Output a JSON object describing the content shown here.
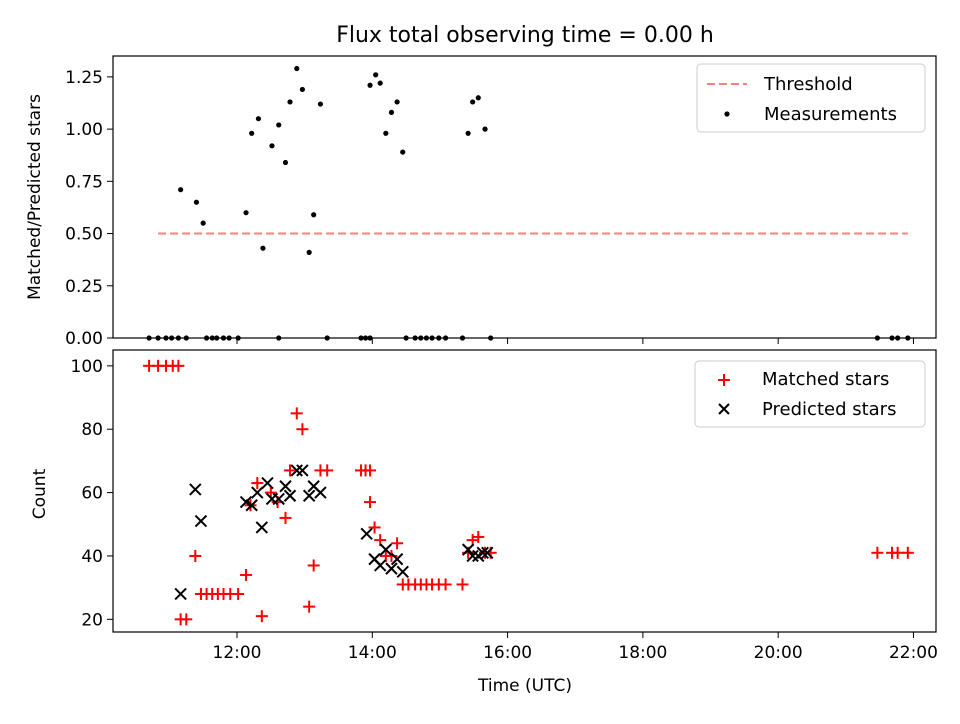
{
  "chart_data": [
    {
      "type": "scatter",
      "title": "Flux total observing time = 0.00 h",
      "xlabel": "",
      "ylabel": "Matched/Predicted stars",
      "ylim": [
        0,
        1.35
      ],
      "xlim": [
        "10:10",
        "22:20"
      ],
      "yticks": [
        "0.00",
        "0.25",
        "0.50",
        "0.75",
        "1.00",
        "1.25"
      ],
      "legend_position": "top-right",
      "threshold": {
        "name": "Threshold",
        "value": 0.5,
        "x_start": "10:50",
        "x_end": "21:55",
        "color": "#ff7f7f",
        "style": "dashed"
      },
      "series": [
        {
          "name": "Measurements",
          "color": "#000000",
          "points": [
            [
              "11:10",
              0.71
            ],
            [
              "11:24",
              0.65
            ],
            [
              "11:30",
              0.55
            ],
            [
              "12:08",
              0.6
            ],
            [
              "12:13",
              0.98
            ],
            [
              "12:19",
              1.05
            ],
            [
              "12:23",
              0.43
            ],
            [
              "12:31",
              0.92
            ],
            [
              "12:37",
              1.02
            ],
            [
              "12:43",
              0.84
            ],
            [
              "12:47",
              1.13
            ],
            [
              "12:53",
              1.29
            ],
            [
              "12:58",
              1.19
            ],
            [
              "13:04",
              0.41
            ],
            [
              "13:08",
              0.59
            ],
            [
              "13:14",
              1.12
            ],
            [
              "13:58",
              1.21
            ],
            [
              "14:03",
              1.26
            ],
            [
              "14:07",
              1.22
            ],
            [
              "14:12",
              0.98
            ],
            [
              "14:17",
              1.08
            ],
            [
              "14:22",
              1.13
            ],
            [
              "14:27",
              0.89
            ],
            [
              "15:25",
              0.98
            ],
            [
              "15:29",
              1.13
            ],
            [
              "15:34",
              1.15
            ],
            [
              "15:40",
              1.0
            ],
            [
              "10:42",
              0
            ],
            [
              "10:50",
              0
            ],
            [
              "10:57",
              0
            ],
            [
              "11:02",
              0
            ],
            [
              "11:08",
              0
            ],
            [
              "11:15",
              0
            ],
            [
              "11:33",
              0
            ],
            [
              "11:38",
              0
            ],
            [
              "11:42",
              0
            ],
            [
              "11:48",
              0
            ],
            [
              "11:53",
              0
            ],
            [
              "12:01",
              0
            ],
            [
              "12:37",
              0
            ],
            [
              "13:20",
              0
            ],
            [
              "13:50",
              0
            ],
            [
              "13:54",
              0
            ],
            [
              "13:58",
              0
            ],
            [
              "14:30",
              0
            ],
            [
              "14:38",
              0
            ],
            [
              "14:43",
              0
            ],
            [
              "14:48",
              0
            ],
            [
              "14:53",
              0
            ],
            [
              "14:59",
              0
            ],
            [
              "15:05",
              0
            ],
            [
              "15:20",
              0
            ],
            [
              "15:45",
              0
            ],
            [
              "21:28",
              0
            ],
            [
              "21:41",
              0
            ],
            [
              "21:46",
              0
            ],
            [
              "21:55",
              0
            ]
          ]
        }
      ]
    },
    {
      "type": "scatter",
      "title": "",
      "xlabel": "Time (UTC)",
      "ylabel": "Count",
      "ylim": [
        16,
        105
      ],
      "xlim": [
        "10:10",
        "22:20"
      ],
      "yticks": [
        "20",
        "40",
        "60",
        "80",
        "100"
      ],
      "xticks": [
        "12:00",
        "14:00",
        "16:00",
        "18:00",
        "20:00",
        "22:00"
      ],
      "legend_position": "top-right",
      "series": [
        {
          "name": "Matched stars",
          "marker": "plus",
          "color": "#ff0000",
          "points": [
            [
              "10:42",
              100
            ],
            [
              "10:50",
              100
            ],
            [
              "10:57",
              100
            ],
            [
              "11:03",
              100
            ],
            [
              "11:08",
              100
            ],
            [
              "11:10",
              20
            ],
            [
              "11:15",
              20
            ],
            [
              "11:23",
              40
            ],
            [
              "11:28",
              28
            ],
            [
              "11:33",
              28
            ],
            [
              "11:38",
              28
            ],
            [
              "11:43",
              28
            ],
            [
              "11:48",
              28
            ],
            [
              "11:54",
              28
            ],
            [
              "12:01",
              28
            ],
            [
              "12:08",
              34
            ],
            [
              "12:12",
              56
            ],
            [
              "12:18",
              63
            ],
            [
              "12:22",
              21
            ],
            [
              "12:30",
              60
            ],
            [
              "12:36",
              57
            ],
            [
              "12:43",
              52
            ],
            [
              "12:47",
              67
            ],
            [
              "12:53",
              85
            ],
            [
              "12:58",
              80
            ],
            [
              "13:04",
              24
            ],
            [
              "13:08",
              37
            ],
            [
              "13:14",
              67
            ],
            [
              "13:20",
              67
            ],
            [
              "13:50",
              67
            ],
            [
              "13:54",
              67
            ],
            [
              "13:58",
              67
            ],
            [
              "13:58",
              57
            ],
            [
              "14:02",
              49
            ],
            [
              "14:07",
              45
            ],
            [
              "14:12",
              40
            ],
            [
              "14:17",
              40
            ],
            [
              "14:22",
              44
            ],
            [
              "14:27",
              31
            ],
            [
              "14:32",
              31
            ],
            [
              "14:38",
              31
            ],
            [
              "14:43",
              31
            ],
            [
              "14:48",
              31
            ],
            [
              "14:53",
              31
            ],
            [
              "14:59",
              31
            ],
            [
              "15:05",
              31
            ],
            [
              "15:20",
              31
            ],
            [
              "15:25",
              41
            ],
            [
              "15:29",
              45
            ],
            [
              "15:34",
              46
            ],
            [
              "15:40",
              41
            ],
            [
              "15:45",
              41
            ],
            [
              "21:28",
              41
            ],
            [
              "21:41",
              41
            ],
            [
              "21:46",
              41
            ],
            [
              "21:55",
              41
            ]
          ]
        },
        {
          "name": "Predicted stars",
          "marker": "x",
          "color": "#000000",
          "points": [
            [
              "11:10",
              28
            ],
            [
              "11:23",
              61
            ],
            [
              "11:28",
              51
            ],
            [
              "12:08",
              57
            ],
            [
              "12:13",
              56
            ],
            [
              "12:18",
              60
            ],
            [
              "12:22",
              49
            ],
            [
              "12:27",
              63
            ],
            [
              "12:31",
              58
            ],
            [
              "12:37",
              58
            ],
            [
              "12:43",
              62
            ],
            [
              "12:47",
              59
            ],
            [
              "12:53",
              67
            ],
            [
              "12:58",
              67
            ],
            [
              "13:04",
              59
            ],
            [
              "13:08",
              62
            ],
            [
              "13:14",
              60
            ],
            [
              "13:55",
              47
            ],
            [
              "14:02",
              39
            ],
            [
              "14:07",
              37
            ],
            [
              "14:12",
              42
            ],
            [
              "14:17",
              36
            ],
            [
              "14:22",
              39
            ],
            [
              "14:27",
              35
            ],
            [
              "15:25",
              42
            ],
            [
              "15:29",
              40
            ],
            [
              "15:34",
              40
            ],
            [
              "15:38",
              41
            ],
            [
              "15:42",
              41
            ]
          ]
        }
      ]
    }
  ]
}
